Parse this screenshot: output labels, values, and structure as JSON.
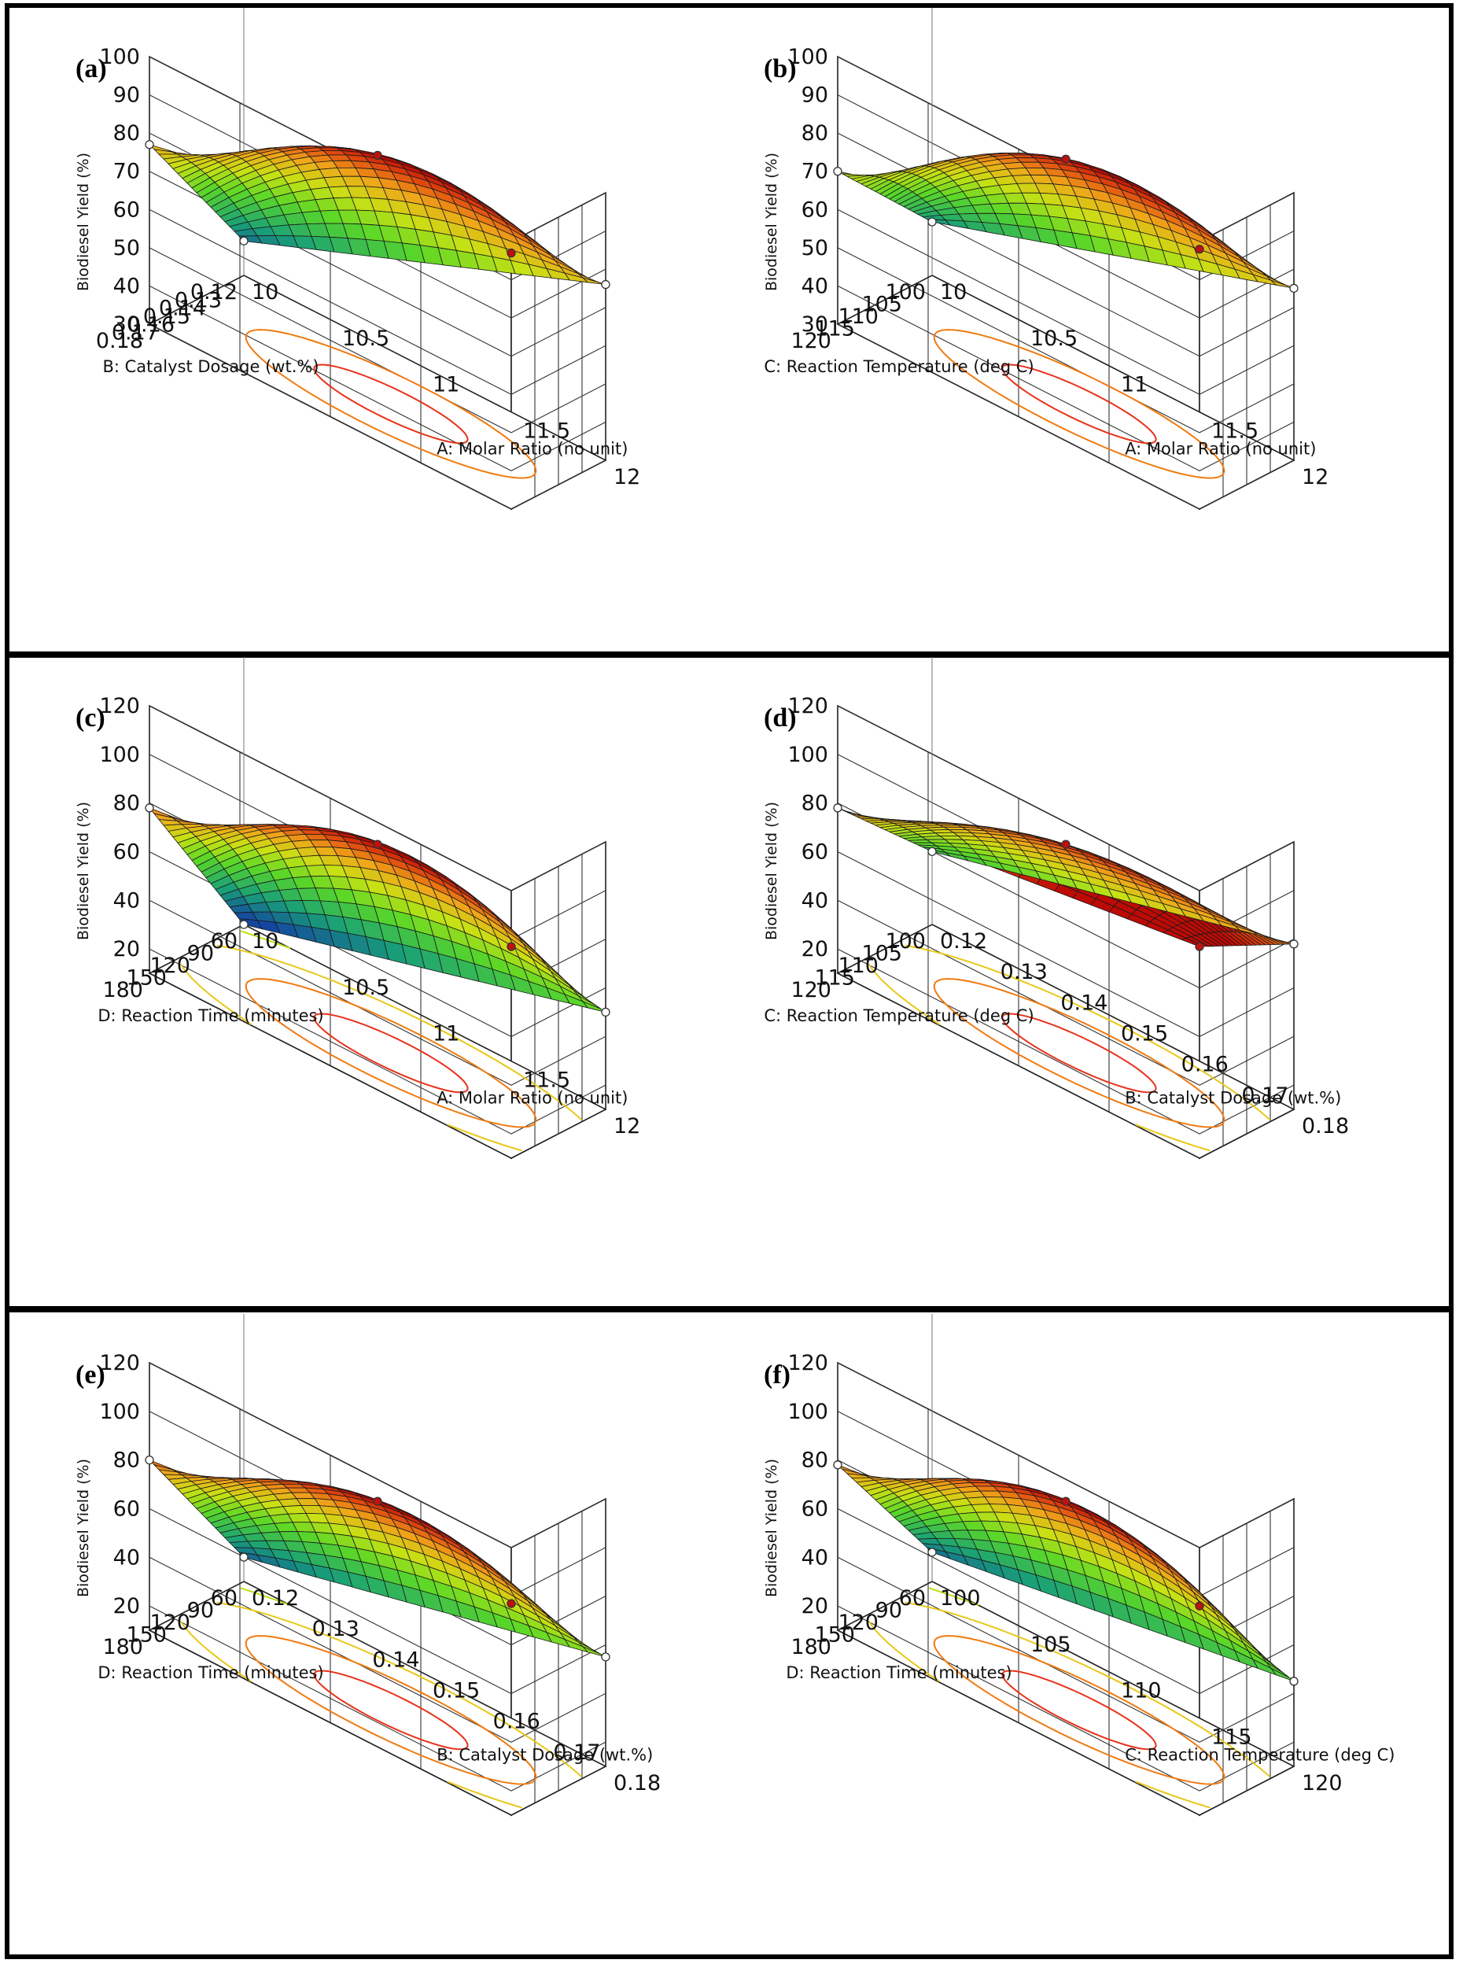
{
  "figure": {
    "panels": [
      "(a)",
      "(b)",
      "(c)",
      "(d)",
      "(e)",
      "(f)"
    ],
    "zlabel": "Biodiesel Yield (%)"
  },
  "chart_data": [
    {
      "type": "surface3d",
      "panel": "(a)",
      "title": "(a)",
      "xlabel": "A: Molar Ratio (no unit)",
      "x_range": [
        10,
        12
      ],
      "x_ticks": [
        "10",
        "10.5",
        "11",
        "11.5",
        "12"
      ],
      "ylabel": "B: Catalyst Dosage (wt.%)",
      "y_range": [
        0.12,
        0.18
      ],
      "y_ticks": [
        "0.12",
        "0.13",
        "0.14",
        "0.15",
        "0.16",
        "0.17",
        "0.18"
      ],
      "zlabel": "Biodiesel Yield (%)",
      "z_range": [
        30,
        100
      ],
      "z_ticks": [
        "30",
        "40",
        "50",
        "60",
        "70",
        "80",
        "90",
        "100"
      ],
      "corner_values": {
        "x_min_y_min": 39,
        "x_max_y_min": 76,
        "x_min_y_max": 77,
        "x_max_y_max": 97
      },
      "peak_value": 92
    },
    {
      "type": "surface3d",
      "panel": "(b)",
      "title": "(b)",
      "xlabel": "A: Molar Ratio (no unit)",
      "x_range": [
        10,
        12
      ],
      "x_ticks": [
        "10",
        "10.5",
        "11",
        "11.5",
        "12"
      ],
      "ylabel": "C: Reaction Temperature (deg C)",
      "y_range": [
        100,
        120
      ],
      "y_ticks": [
        "100",
        "105",
        "110",
        "115",
        "120"
      ],
      "zlabel": "Biodiesel Yield (%)",
      "z_range": [
        30,
        100
      ],
      "z_ticks": [
        "30",
        "40",
        "50",
        "60",
        "70",
        "80",
        "90",
        "100"
      ],
      "corner_values": {
        "x_min_y_min": 44,
        "x_max_y_min": 75,
        "x_min_y_max": 70,
        "x_max_y_max": 98
      },
      "peak_value": 91
    },
    {
      "type": "surface3d",
      "panel": "(c)",
      "title": "(c)",
      "xlabel": "A: Molar Ratio (no unit)",
      "x_range": [
        10,
        12
      ],
      "x_ticks": [
        "10",
        "10.5",
        "11",
        "11.5",
        "12"
      ],
      "ylabel": "D: Reaction Time (minutes)",
      "y_range": [
        60,
        180
      ],
      "y_ticks": [
        "60",
        "90",
        "120",
        "150",
        "180"
      ],
      "zlabel": "Biodiesel Yield (%)",
      "z_range": [
        10,
        120
      ],
      "z_ticks": [
        "20",
        "40",
        "60",
        "80",
        "100",
        "120"
      ],
      "corner_values": {
        "x_min_y_min": 10,
        "x_max_y_min": 50,
        "x_min_y_max": 78,
        "x_max_y_max": 97
      },
      "peak_value": 91
    },
    {
      "type": "surface3d",
      "panel": "(d)",
      "title": "(d)",
      "xlabel": "B: Catalyst Dosage (wt.%)",
      "x_range": [
        0.12,
        0.18
      ],
      "x_ticks": [
        "0.12",
        "0.13",
        "0.14",
        "0.15",
        "0.16",
        "0.17",
        "0.18"
      ],
      "ylabel": "C: Reaction Temperature (deg C)",
      "y_range": [
        100,
        120
      ],
      "y_ticks": [
        "100",
        "105",
        "110",
        "115",
        "120"
      ],
      "zlabel": "Biodiesel Yield (%)",
      "z_range": [
        10,
        120
      ],
      "z_ticks": [
        "20",
        "40",
        "60",
        "80",
        "100",
        "120"
      ],
      "corner_values": {
        "x_min_y_min": 40,
        "x_max_y_min": 78,
        "x_min_y_max": 78,
        "x_max_y_max": 97
      },
      "peak_value": 91
    },
    {
      "type": "surface3d",
      "panel": "(e)",
      "title": "(e)",
      "xlabel": "B: Catalyst Dosage (wt.%)",
      "x_range": [
        0.12,
        0.18
      ],
      "x_ticks": [
        "0.12",
        "0.13",
        "0.14",
        "0.15",
        "0.16",
        "0.17",
        "0.18"
      ],
      "ylabel": "D: Reaction Time (minutes)",
      "y_range": [
        60,
        180
      ],
      "y_ticks": [
        "60",
        "90",
        "120",
        "150",
        "180"
      ],
      "zlabel": "Biodiesel Yield (%)",
      "z_range": [
        10,
        120
      ],
      "z_ticks": [
        "20",
        "40",
        "60",
        "80",
        "100",
        "120"
      ],
      "corner_values": {
        "x_min_y_min": 20,
        "x_max_y_min": 55,
        "x_min_y_max": 80,
        "x_max_y_max": 97
      },
      "peak_value": 91
    },
    {
      "type": "surface3d",
      "panel": "(f)",
      "title": "(f)",
      "xlabel": "C: Reaction Temperature (deg C)",
      "x_range": [
        100,
        120
      ],
      "x_ticks": [
        "100",
        "105",
        "110",
        "115",
        "120"
      ],
      "ylabel": "D: Reaction Time (minutes)",
      "y_range": [
        60,
        180
      ],
      "y_ticks": [
        "60",
        "90",
        "120",
        "150",
        "180"
      ],
      "zlabel": "Biodiesel Yield (%)",
      "z_range": [
        10,
        120
      ],
      "z_ticks": [
        "20",
        "40",
        "60",
        "80",
        "100",
        "120"
      ],
      "corner_values": {
        "x_min_y_min": 22,
        "x_max_y_min": 45,
        "x_min_y_max": 78,
        "x_max_y_max": 96
      },
      "peak_value": 91
    }
  ]
}
